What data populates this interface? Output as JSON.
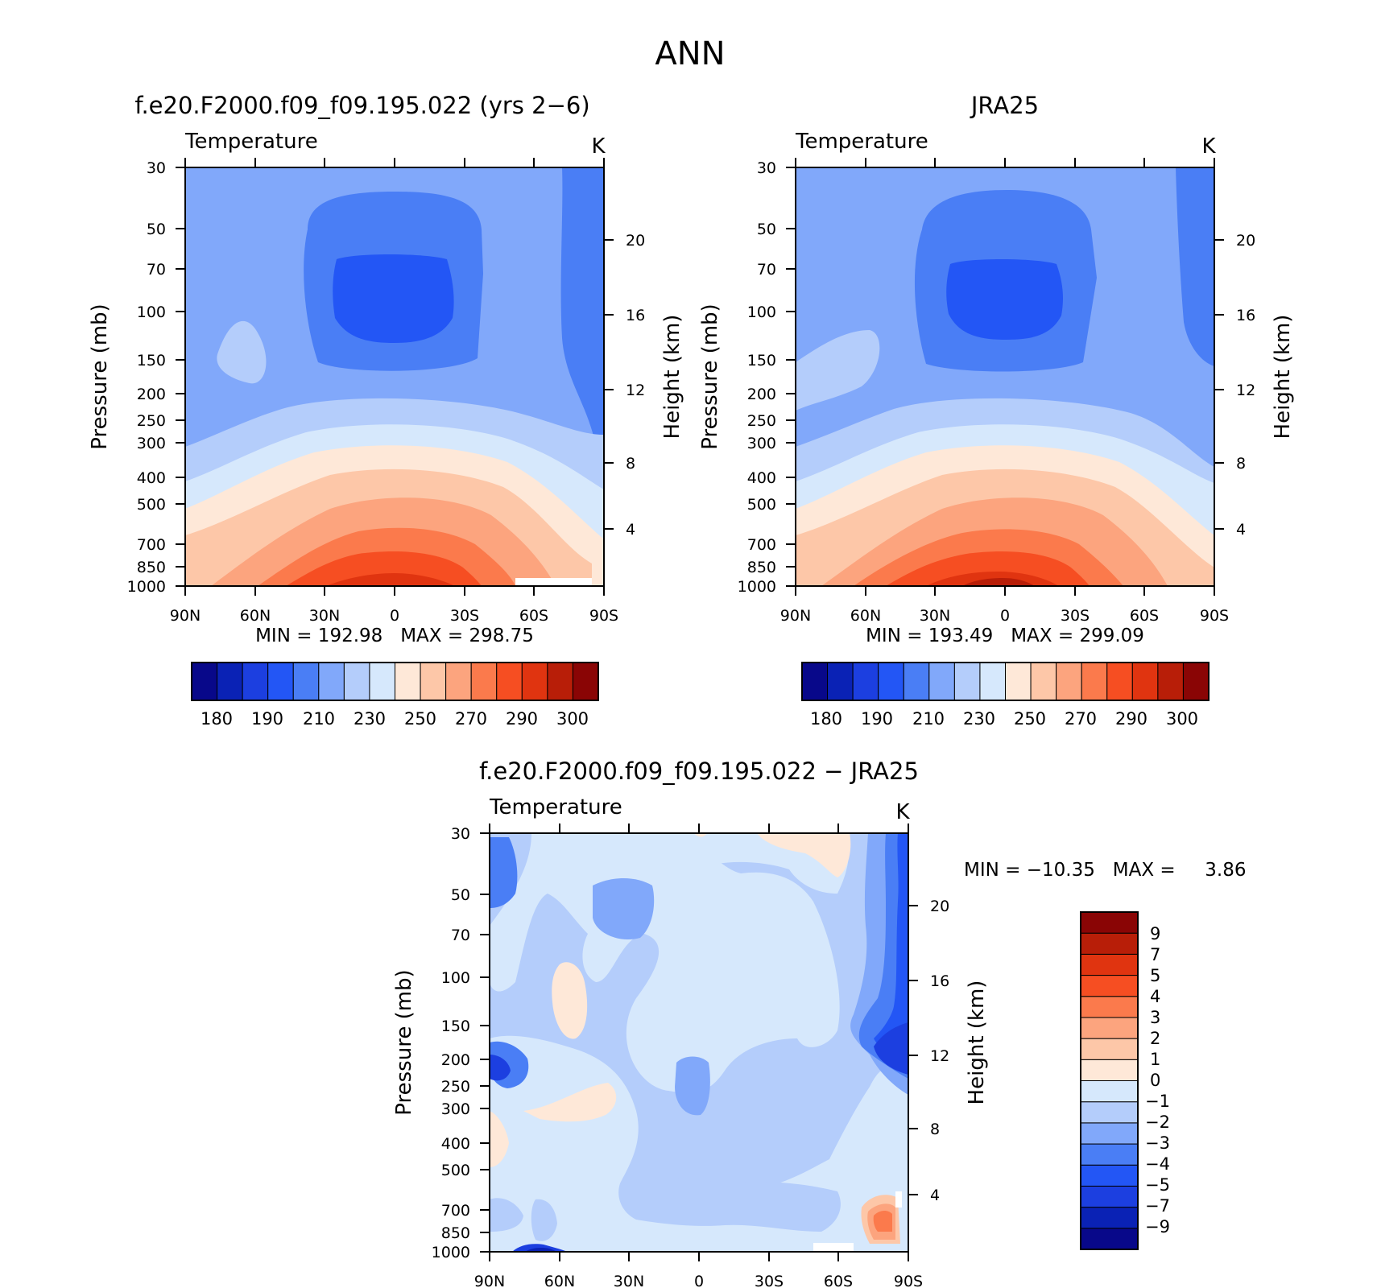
{
  "figure_title": "ANN",
  "shared": {
    "lat_ticks": [
      "90N",
      "60N",
      "30N",
      "0",
      "30S",
      "60S",
      "90S"
    ],
    "pressure_ticks": [
      "30",
      "50",
      "70",
      "100",
      "150",
      "200",
      "250",
      "300",
      "400",
      "500",
      "700",
      "850",
      "1000"
    ],
    "height_ticks": [
      "20",
      "16",
      "12",
      "8",
      "4"
    ],
    "ylabel": "Pressure (mb)",
    "y2label": "Height (km)",
    "variable": "Temperature",
    "units": "K"
  },
  "colors": {
    "abs": [
      "#08088a",
      "#0a22b5",
      "#1c3fe0",
      "#2356f5",
      "#4a7ef5",
      "#81a8fa",
      "#b4cdfb",
      "#d6e8fc",
      "#fee8d8",
      "#fdc7a8",
      "#fca47e",
      "#fb7a4c",
      "#f64e22",
      "#e03410",
      "#b81e08",
      "#8a0505"
    ],
    "diff": [
      "#08088a",
      "#0a22b5",
      "#1c3fe0",
      "#2356f5",
      "#4a7ef5",
      "#81a8fa",
      "#b4cdfb",
      "#d6e8fc",
      "#fee8d8",
      "#fdc7a8",
      "#fca47e",
      "#fb7a4c",
      "#f64e22",
      "#e03410",
      "#b81e08",
      "#8a0505"
    ]
  },
  "chart_data": [
    {
      "type": "heatmap",
      "title": "f.e20.F2000.f09_f09.195.022 (yrs 2−6)",
      "subtitle": "Temperature",
      "units": "K",
      "xlabel": "",
      "ylabel": "Pressure (mb)",
      "y2label": "Height (km)",
      "stats": "MIN = 192.98   MAX = 298.75",
      "min": 192.98,
      "max": 298.75,
      "colorbar_labels": [
        "180",
        "190",
        "210",
        "230",
        "250",
        "270",
        "290",
        "300"
      ]
    },
    {
      "type": "heatmap",
      "title": "JRA25",
      "subtitle": "Temperature",
      "units": "K",
      "xlabel": "",
      "ylabel": "Pressure (mb)",
      "y2label": "Height (km)",
      "stats": "MIN = 193.49   MAX = 299.09",
      "min": 193.49,
      "max": 299.09,
      "colorbar_labels": [
        "180",
        "190",
        "210",
        "230",
        "250",
        "270",
        "290",
        "300"
      ]
    },
    {
      "type": "heatmap",
      "title": "f.e20.F2000.f09_f09.195.022 − JRA25",
      "subtitle": "Temperature",
      "units": "K",
      "xlabel": "",
      "ylabel": "Pressure (mb)",
      "y2label": "Height (km)",
      "stats": "MIN = −10.35   MAX =     3.86",
      "min": -10.35,
      "max": 3.86,
      "colorbar_labels": [
        "9",
        "7",
        "5",
        "4",
        "3",
        "2",
        "1",
        "0",
        "−1",
        "−2",
        "−3",
        "−4",
        "−5",
        "−7",
        "−9"
      ]
    }
  ]
}
